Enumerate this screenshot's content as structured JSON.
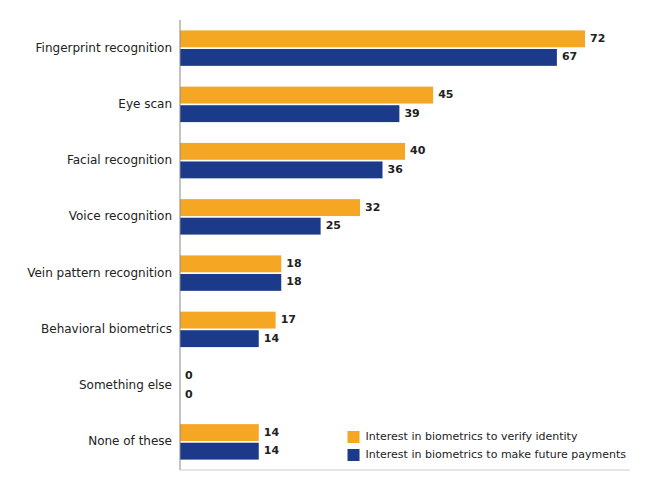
{
  "chart_data": {
    "type": "bar",
    "orientation": "horizontal",
    "categories": [
      "Fingerprint recognition",
      "Eye scan",
      "Facial recognition",
      "Voice recognition",
      "Vein pattern recognition",
      "Behavioral biometrics",
      "Something else",
      "None of these"
    ],
    "series": [
      {
        "name": "Interest in biometrics to verify identity",
        "color": "#F5A623",
        "values": [
          72,
          45,
          40,
          32,
          18,
          17,
          0,
          14
        ]
      },
      {
        "name": "Interest in biometrics to make future payments",
        "color": "#1C3A8A",
        "values": [
          67,
          39,
          36,
          25,
          18,
          14,
          0,
          14
        ]
      }
    ],
    "xlim": [
      0,
      80
    ],
    "xticks": [],
    "tick_labels": "y",
    "data_labels": true,
    "legend": "lower right",
    "grid": false
  }
}
